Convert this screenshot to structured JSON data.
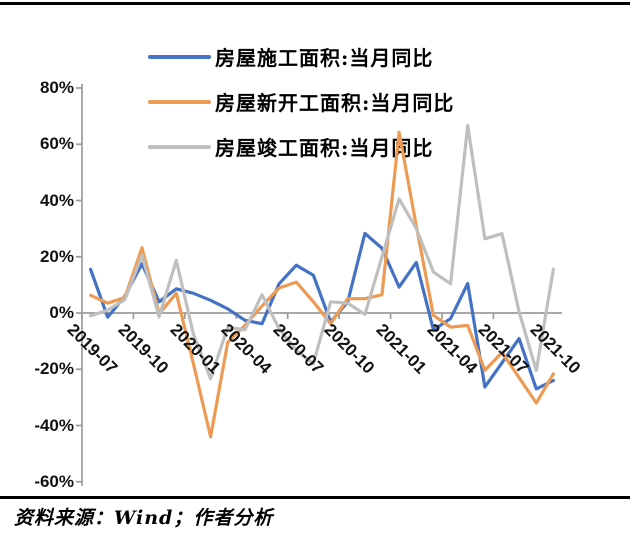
{
  "frame": {
    "bg": "#ffffff",
    "border_color": "#000000"
  },
  "legend": {
    "items": [
      {
        "label": "房屋施工面积:当月同比",
        "color": "#4472C4"
      },
      {
        "label": "房屋新开工面积:当月同比",
        "color": "#ED9B54"
      },
      {
        "label": "房屋竣工面积:当月同比",
        "color": "#BFBFBF"
      }
    ]
  },
  "source": {
    "text": "资料来源：Wind；作者分析"
  },
  "chart_data": {
    "type": "line",
    "title": "",
    "xlabel": "",
    "ylabel": "",
    "ylim": [
      -60,
      80
    ],
    "grid": "zero-line-only",
    "legend_position": "top",
    "axis_color": "#9b9b9b",
    "categories": [
      "2019-07",
      "2019-08",
      "2019-09",
      "2019-10",
      "2019-11",
      "2019-12",
      "2020-01",
      "2020-02",
      "2020-03",
      "2020-04",
      "2020-05",
      "2020-06",
      "2020-07",
      "2020-08",
      "2020-09",
      "2020-10",
      "2020-11",
      "2020-12",
      "2021-01",
      "2021-02",
      "2021-03",
      "2021-04",
      "2021-05",
      "2021-06",
      "2021-07",
      "2021-08",
      "2021-09",
      "2021-10"
    ],
    "x_tick_labels": [
      "2019-07",
      "2019-10",
      "2020-01",
      "2020-04",
      "2020-07",
      "2020-10",
      "2021-01",
      "2021-04",
      "2021-07",
      "2021-10"
    ],
    "y_ticks": [
      {
        "value": 80,
        "label": "80%"
      },
      {
        "value": 60,
        "label": "60%"
      },
      {
        "value": 40,
        "label": "40%"
      },
      {
        "value": 20,
        "label": "20%"
      },
      {
        "value": 0,
        "label": "0%"
      },
      {
        "value": -20,
        "label": "-20%"
      },
      {
        "value": -40,
        "label": "-40%"
      },
      {
        "value": -60,
        "label": "-60%"
      }
    ],
    "series": [
      {
        "name": "房屋施工面积:当月同比",
        "color": "#4472C4",
        "values": [
          15.5,
          -1.5,
          6.0,
          17.5,
          4.0,
          8.6,
          7.0,
          4.5,
          1.5,
          -2.6,
          -3.8,
          10.4,
          17.0,
          13.4,
          -3.2,
          3.9,
          28.3,
          23.0,
          9.2,
          18.0,
          -6.0,
          -2.0,
          10.5,
          -26.3,
          -17.7,
          -9.1,
          -27.0,
          -24.0
        ]
      },
      {
        "name": "房屋新开工面积:当月同比",
        "color": "#ED9B54",
        "values": [
          6.3,
          3.5,
          5.5,
          23.2,
          -0.3,
          7.0,
          -18.0,
          -44.0,
          -10.5,
          -4.4,
          2.5,
          8.9,
          11.0,
          4.0,
          -3.8,
          5.1,
          5.1,
          6.5,
          64.3,
          31.0,
          -0.8,
          -5.0,
          -4.4,
          -20.4,
          -14.0,
          -23.0,
          -32.0,
          -21.6
        ]
      },
      {
        "name": "房屋竣工面积:当月同比",
        "color": "#BFBFBF",
        "values": [
          -1.0,
          1.0,
          4.8,
          20.5,
          -1.4,
          18.7,
          -7.5,
          -23.4,
          -5.0,
          -6.0,
          6.5,
          -5.6,
          -13.3,
          -18.0,
          4.0,
          3.5,
          -0.5,
          20.0,
          40.6,
          30.0,
          14.6,
          10.4,
          66.7,
          26.4,
          28.2,
          0.4,
          -20.4,
          15.6
        ]
      }
    ]
  }
}
